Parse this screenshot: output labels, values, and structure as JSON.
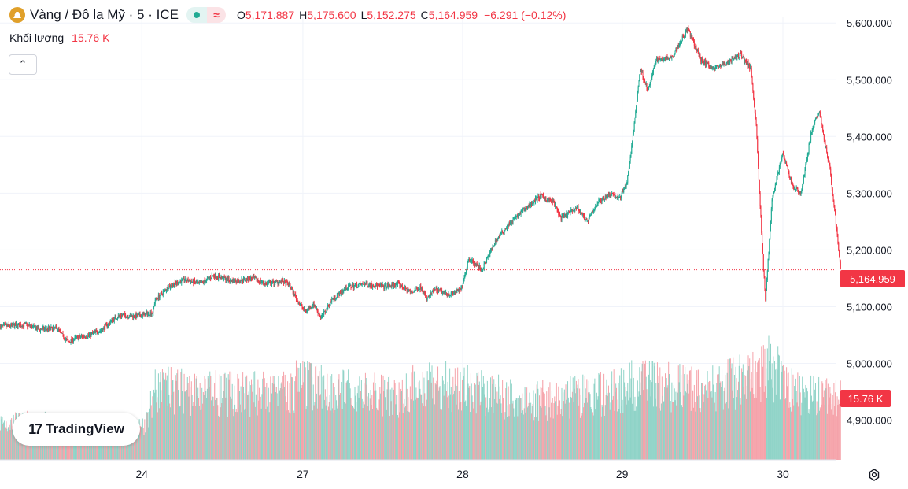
{
  "header": {
    "symbol_title": "Vàng / Đô la Mỹ · 5 · ICE",
    "wave_icon_text": "≈",
    "open_label": "O",
    "open": "5,171.887",
    "high_label": "H",
    "high": "5,175.600",
    "low_label": "L",
    "low": "5,152.275",
    "close_label": "C",
    "close": "5,164.959",
    "change": "−6.291 (−0.12%)",
    "volume_label": "Khối lượng",
    "volume_value": "15.76 K",
    "collapse_glyph": "⌃"
  },
  "brand": {
    "logo_mark": "17",
    "name": "TradingView"
  },
  "colors": {
    "up": "#22ab94",
    "down": "#f23645",
    "up_volume": "#8fd3c7",
    "down_volume": "#f5a3aa",
    "grid": "#f0f3fa",
    "axis_text": "#131722"
  },
  "chart_data": {
    "type": "candlestick",
    "title": "Vàng / Đô la Mỹ · 5 · ICE",
    "interval": "5",
    "ylim": [
      4830,
      5610
    ],
    "y_ticks": [
      4900,
      5000,
      5100,
      5200,
      5300,
      5400,
      5500,
      5600
    ],
    "y_tick_labels": [
      "4,900.000",
      "5,000.000",
      "5,100.000",
      "5,200.000",
      "5,300.000",
      "5,400.000",
      "5,500.000",
      "5,600.000"
    ],
    "x_day_labels": [
      "24",
      "27",
      "28",
      "29",
      "30"
    ],
    "x_day_index": [
      5.38,
      11.49,
      17.55,
      23.6,
      29.7
    ],
    "x_range_days": [
      0,
      31.7
    ],
    "price_path": [
      [
        0,
        5065
      ],
      [
        1,
        5068
      ],
      [
        1.5,
        5060
      ],
      [
        2.2,
        5062
      ],
      [
        2.4,
        5048
      ],
      [
        2.6,
        5038
      ],
      [
        2.9,
        5045
      ],
      [
        3.4,
        5050
      ],
      [
        3.9,
        5060
      ],
      [
        4.3,
        5078
      ],
      [
        4.6,
        5085
      ],
      [
        5.2,
        5083
      ],
      [
        5.8,
        5090
      ],
      [
        5.9,
        5112
      ],
      [
        6.4,
        5135
      ],
      [
        7.0,
        5148
      ],
      [
        7.6,
        5140
      ],
      [
        8.1,
        5155
      ],
      [
        8.9,
        5145
      ],
      [
        9.6,
        5150
      ],
      [
        10.1,
        5140
      ],
      [
        10.7,
        5145
      ],
      [
        11.0,
        5138
      ],
      [
        11.3,
        5110
      ],
      [
        11.6,
        5092
      ],
      [
        11.9,
        5105
      ],
      [
        12.2,
        5080
      ],
      [
        12.6,
        5112
      ],
      [
        13.2,
        5135
      ],
      [
        13.9,
        5140
      ],
      [
        14.6,
        5135
      ],
      [
        15.1,
        5140
      ],
      [
        15.6,
        5125
      ],
      [
        16.0,
        5135
      ],
      [
        16.2,
        5113
      ],
      [
        16.5,
        5130
      ],
      [
        17.1,
        5122
      ],
      [
        17.5,
        5130
      ],
      [
        17.8,
        5185
      ],
      [
        18.3,
        5165
      ],
      [
        18.8,
        5215
      ],
      [
        19.3,
        5245
      ],
      [
        20.0,
        5275
      ],
      [
        20.5,
        5295
      ],
      [
        21.0,
        5285
      ],
      [
        21.3,
        5255
      ],
      [
        21.9,
        5275
      ],
      [
        22.3,
        5250
      ],
      [
        22.7,
        5285
      ],
      [
        23.2,
        5300
      ],
      [
        23.5,
        5290
      ],
      [
        23.8,
        5320
      ],
      [
        24.0,
        5390
      ],
      [
        24.3,
        5520
      ],
      [
        24.6,
        5480
      ],
      [
        24.9,
        5535
      ],
      [
        25.5,
        5540
      ],
      [
        26.1,
        5590
      ],
      [
        26.6,
        5535
      ],
      [
        27.1,
        5520
      ],
      [
        27.6,
        5530
      ],
      [
        28.1,
        5545
      ],
      [
        28.5,
        5520
      ],
      [
        28.7,
        5420
      ],
      [
        28.9,
        5230
      ],
      [
        29.05,
        5110
      ],
      [
        29.3,
        5290
      ],
      [
        29.7,
        5370
      ],
      [
        30.1,
        5310
      ],
      [
        30.4,
        5300
      ],
      [
        30.8,
        5410
      ],
      [
        31.1,
        5445
      ],
      [
        31.3,
        5390
      ],
      [
        31.5,
        5340
      ],
      [
        31.7,
        5260
      ],
      [
        31.9,
        5165
      ]
    ],
    "current_price": "5,164.959",
    "current_volume": "15.76 K",
    "volume_range_k": [
      0,
      25
    ],
    "volume_profile": [
      [
        0,
        9
      ],
      [
        5.4,
        8
      ],
      [
        5.9,
        17
      ],
      [
        8.5,
        16
      ],
      [
        11.0,
        16
      ],
      [
        11.3,
        19
      ],
      [
        12.5,
        17
      ],
      [
        15.0,
        15
      ],
      [
        16.2,
        19
      ],
      [
        17.8,
        17
      ],
      [
        20.0,
        14
      ],
      [
        23.0,
        16
      ],
      [
        24.0,
        18
      ],
      [
        27.0,
        17
      ],
      [
        28.7,
        20
      ],
      [
        29.05,
        23
      ],
      [
        30.0,
        18
      ],
      [
        30.8,
        15
      ],
      [
        31.9,
        16
      ]
    ],
    "candles_per_day": 40
  }
}
